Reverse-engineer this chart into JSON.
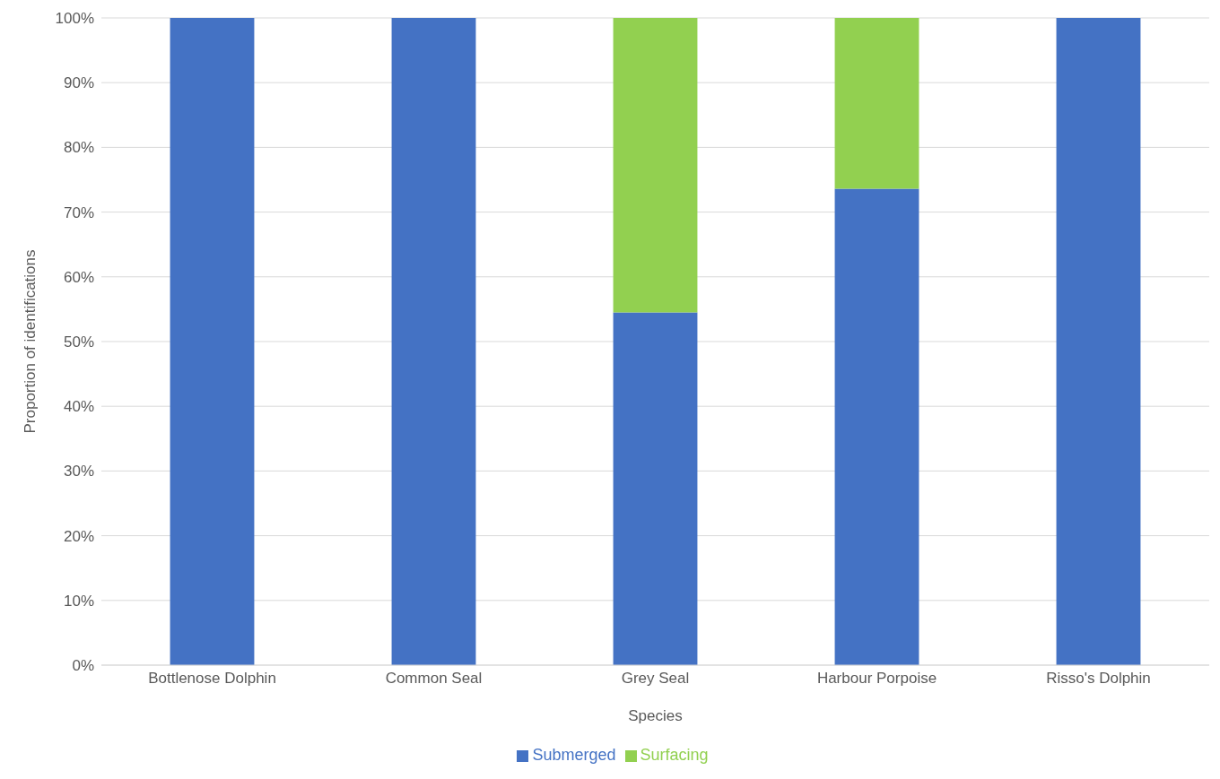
{
  "chart_data": {
    "type": "bar",
    "stacked": true,
    "xlabel": "Species",
    "ylabel": "Proportion of identifications",
    "categories": [
      "Bottlenose Dolphin",
      "Common Seal",
      "Grey Seal",
      "Harbour Porpoise",
      "Risso's Dolphin"
    ],
    "series": [
      {
        "name": "Submerged",
        "color": "#4472c4",
        "values": [
          100,
          100,
          54.5,
          73.6,
          100
        ]
      },
      {
        "name": "Surfacing",
        "color": "#92d050",
        "values": [
          0,
          0,
          45.5,
          26.4,
          0
        ]
      }
    ],
    "ylim": [
      0,
      100
    ],
    "yticks": [
      {
        "value": 0,
        "label": "0%"
      },
      {
        "value": 10,
        "label": "10%"
      },
      {
        "value": 20,
        "label": "20%"
      },
      {
        "value": 30,
        "label": "30%"
      },
      {
        "value": 40,
        "label": "40%"
      },
      {
        "value": 50,
        "label": "50%"
      },
      {
        "value": 60,
        "label": "60%"
      },
      {
        "value": 70,
        "label": "70%"
      },
      {
        "value": 80,
        "label": "80%"
      },
      {
        "value": 90,
        "label": "90%"
      },
      {
        "value": 100,
        "label": "100%"
      }
    ],
    "grid": "y",
    "legend": "bottom"
  }
}
